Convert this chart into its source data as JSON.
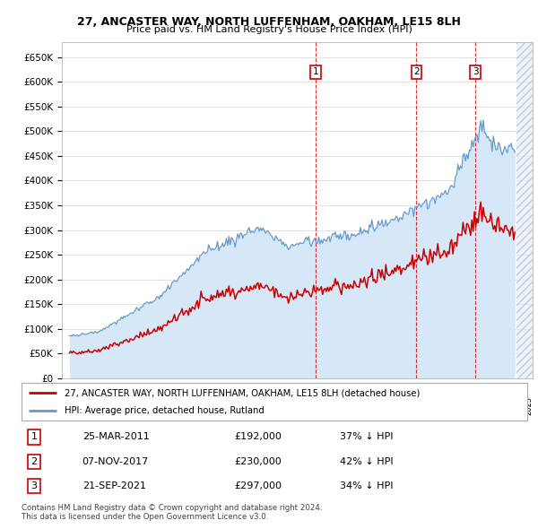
{
  "title1": "27, ANCASTER WAY, NORTH LUFFENHAM, OAKHAM, LE15 8LH",
  "title2": "Price paid vs. HM Land Registry's House Price Index (HPI)",
  "ylim": [
    0,
    680000
  ],
  "yticks": [
    0,
    50000,
    100000,
    150000,
    200000,
    250000,
    300000,
    350000,
    400000,
    450000,
    500000,
    550000,
    600000,
    650000
  ],
  "ytick_labels": [
    "£0",
    "£50K",
    "£100K",
    "£150K",
    "£200K",
    "£250K",
    "£300K",
    "£350K",
    "£400K",
    "£450K",
    "£500K",
    "£550K",
    "£600K",
    "£650K"
  ],
  "legend_red": "27, ANCASTER WAY, NORTH LUFFENHAM, OAKHAM, LE15 8LH (detached house)",
  "legend_blue": "HPI: Average price, detached house, Rutland",
  "sale1_date": "25-MAR-2011",
  "sale1_price": "£192,000",
  "sale1_hpi": "37% ↓ HPI",
  "sale2_date": "07-NOV-2017",
  "sale2_price": "£230,000",
  "sale2_hpi": "42% ↓ HPI",
  "sale3_date": "21-SEP-2021",
  "sale3_price": "£297,000",
  "sale3_hpi": "34% ↓ HPI",
  "footnote1": "Contains HM Land Registry data © Crown copyright and database right 2024.",
  "footnote2": "This data is licensed under the Open Government Licence v3.0.",
  "red_color": "#cc0000",
  "blue_color": "#6699cc",
  "blue_fill_color": "#d6e8f7",
  "grid_color": "#cccccc",
  "bg_color": "#ffffff",
  "sale1_x": 2011.23,
  "sale2_x": 2017.85,
  "sale3_x": 2021.72,
  "xlim_left": 1994.5,
  "xlim_right": 2025.5,
  "hatch_start": 2024.42
}
